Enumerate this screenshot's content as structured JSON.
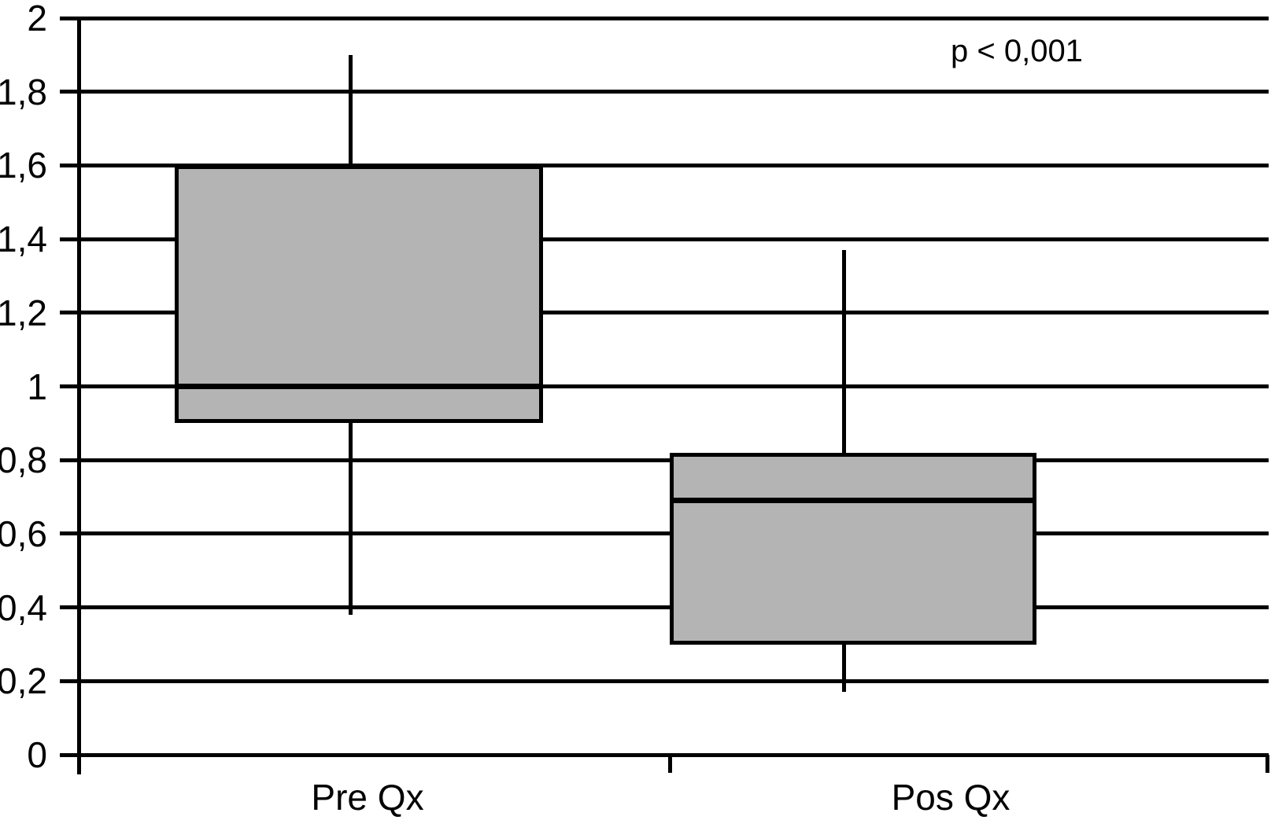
{
  "chart_data": {
    "type": "boxplot",
    "title": "",
    "annotation": "p < 0,001",
    "decimal_separator": ",",
    "categories": [
      "Pre Qx",
      "Pos Qx"
    ],
    "series": [
      {
        "name": "Pre Qx",
        "min": 0.38,
        "q1": 0.9,
        "median": 1.0,
        "q3": 1.6,
        "max": 1.9
      },
      {
        "name": "Pos Qx",
        "min": 0.17,
        "q1": 0.3,
        "median": 0.69,
        "q3": 0.82,
        "max": 1.37
      }
    ],
    "ylim": [
      0,
      2
    ],
    "ytick_step": 0.2,
    "ytick_values": [
      0,
      0.2,
      0.4,
      0.6,
      0.8,
      1.0,
      1.2,
      1.4,
      1.6,
      1.8,
      2.0
    ],
    "ytick_labels": [
      "0",
      "0,2",
      "0,4",
      "0,6",
      "0,8",
      "1",
      "1,2",
      "1,4",
      "1,6",
      "1,8",
      "2"
    ],
    "xlabel": "",
    "ylabel": "",
    "grid": true,
    "legend": "none",
    "colors": {
      "box_fill": "#b4b4b4",
      "line": "#000000",
      "background": "#ffffff"
    }
  }
}
